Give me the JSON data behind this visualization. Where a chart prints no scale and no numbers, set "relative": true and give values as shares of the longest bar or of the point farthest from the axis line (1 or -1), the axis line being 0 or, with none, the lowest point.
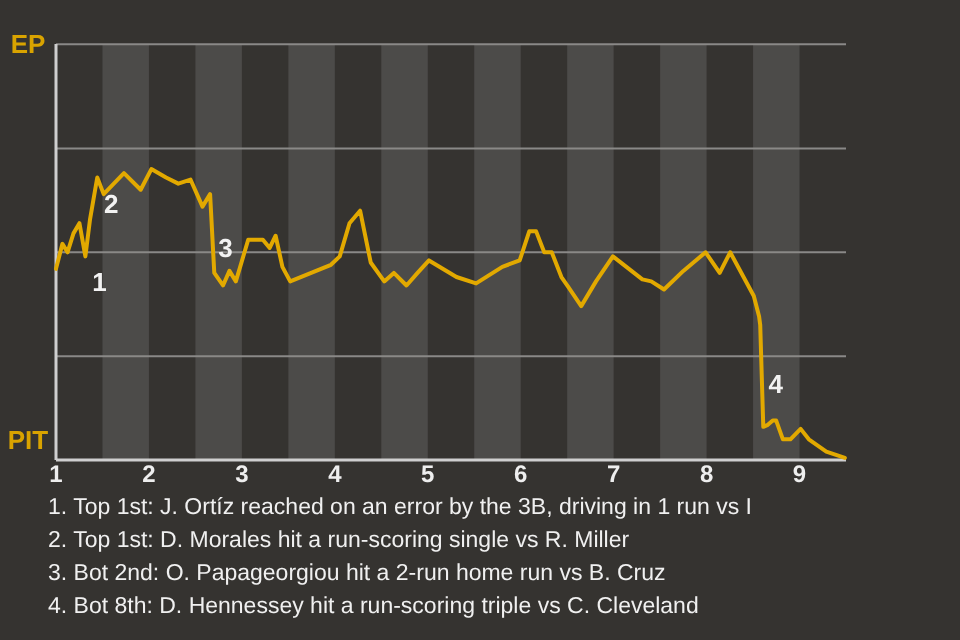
{
  "chart_data": {
    "type": "line",
    "relative": true,
    "x": [
      1,
      1.069,
      1.124,
      1.188,
      1.252,
      1.316,
      1.367,
      1.444,
      1.513,
      1.731,
      1.911,
      2.026,
      2.184,
      2.316,
      2.447,
      2.576,
      2.658,
      2.703,
      2.797,
      2.866,
      2.935,
      3.068,
      3.226,
      3.299,
      3.363,
      3.436,
      3.52,
      3.958,
      4.053,
      4.158,
      4.272,
      4.386,
      4.532,
      4.635,
      4.771,
      4.89,
      5.013,
      5.309,
      5.52,
      5.802,
      5.989,
      6.092,
      6.166,
      6.253,
      6.334,
      6.438,
      6.515,
      6.651,
      6.81,
      6.992,
      7.309,
      7.405,
      7.542,
      7.75,
      7.989,
      8.141,
      8.254,
      8.508,
      8.565,
      8.577,
      8.61,
      8.659,
      8.712,
      8.748,
      8.821,
      8.902,
      9.012,
      9.1,
      9.288,
      9.488
    ],
    "series": [
      {
        "color": "#e2a900",
        "values": [
          0.657,
          0.743,
          0.714,
          0.779,
          0.814,
          0.7,
          0.829,
          0.971,
          0.914,
          0.986,
          0.929,
          1,
          0.971,
          0.95,
          0.964,
          0.871,
          0.914,
          0.643,
          0.6,
          0.65,
          0.614,
          0.757,
          0.757,
          0.729,
          0.771,
          0.664,
          0.614,
          0.671,
          0.7,
          0.814,
          0.857,
          0.679,
          0.614,
          0.643,
          0.6,
          0.643,
          0.686,
          0.629,
          0.607,
          0.664,
          0.686,
          0.786,
          0.786,
          0.714,
          0.714,
          0.629,
          0.593,
          0.529,
          0.614,
          0.7,
          0.621,
          0.614,
          0.586,
          0.65,
          0.714,
          0.643,
          0.714,
          0.564,
          0.493,
          0.464,
          0.114,
          0.121,
          0.136,
          0.136,
          0.071,
          0.071,
          0.107,
          0.071,
          0.029,
          0.007
        ]
      }
    ],
    "xlim": [
      1,
      9.5
    ],
    "xticks": [
      1,
      2,
      3,
      4,
      5,
      6,
      7,
      8,
      9
    ],
    "ref_lines": [
      {
        "axis": "y",
        "value": 0.357,
        "color": "#8a8987"
      },
      {
        "axis": "y",
        "value": 0.714,
        "color": "#8a8987"
      },
      {
        "axis": "y",
        "value": 1.071,
        "color": "#8a8987"
      },
      {
        "axis": "y",
        "value": 1.429,
        "color": "#8a8987"
      }
    ],
    "marker": "none",
    "bands": [
      {
        "axis": "x",
        "from": 1.5,
        "to": 2,
        "color": "#4c4b49"
      },
      {
        "axis": "x",
        "from": 2.5,
        "to": 3,
        "color": "#4c4b49"
      },
      {
        "axis": "x",
        "from": 3.5,
        "to": 4,
        "color": "#4c4b49"
      },
      {
        "axis": "x",
        "from": 4.5,
        "to": 5,
        "color": "#4c4b49"
      },
      {
        "axis": "x",
        "from": 5.5,
        "to": 6,
        "color": "#4c4b49"
      },
      {
        "axis": "x",
        "from": 6.5,
        "to": 7,
        "color": "#4c4b49"
      },
      {
        "axis": "x",
        "from": 7.5,
        "to": 8,
        "color": "#4c4b49"
      },
      {
        "axis": "x",
        "from": 8.5,
        "to": 9,
        "color": "#4c4b49"
      }
    ],
    "annotations": [
      {
        "text": "1",
        "x": 1.316,
        "y": 0.7
      },
      {
        "text": "2",
        "x": 1.444,
        "y": 0.971
      },
      {
        "text": "3",
        "x": 2.674,
        "y": 0.82
      },
      {
        "text": "4",
        "x": 8.592,
        "y": 0.35
      },
      "EP",
      "PIT",
      "1. Top 1st: J. Ortíz reached on an error by the 3B, driving in 1 run vs I",
      "2. Top 1st: D. Morales hit a run-scoring single vs R. Miller",
      "3. Bot 2nd: O. Papageorgiou hit a 2-run home run vs B. Cruz",
      "4. Bot 8th: D. Hennessey hit a run-scoring triple vs C. Cleveland"
    ]
  }
}
